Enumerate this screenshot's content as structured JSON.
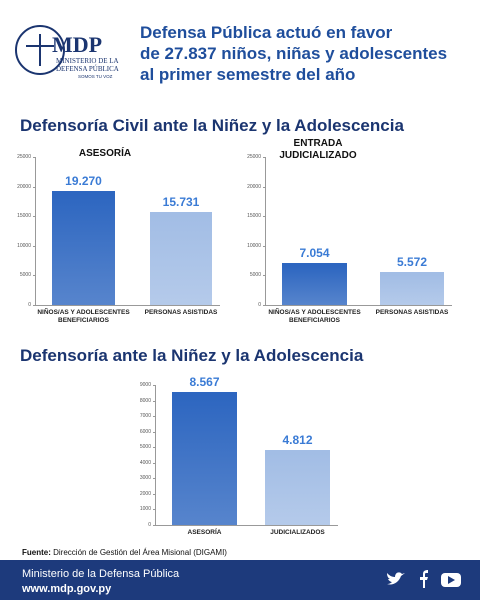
{
  "logo": {
    "name": "MDP",
    "line1": "MINISTERIO DE LA",
    "line2": "DEFENSA PÚBLICA",
    "motto": "SOMOS TU VOZ"
  },
  "header": {
    "title": [
      "Defensa Pública actuó en favor",
      "de 27.837 niños, niñas y adolescentes",
      "al primer semestre del año"
    ]
  },
  "sections": [
    "Defensoría Civil ante la Niñez y la Adolescencia",
    "Defensoría ante la Niñez y la Adolescencia"
  ],
  "chart_data": [
    {
      "type": "bar",
      "title": "ASESORÍA",
      "categories": [
        "NIÑOS/AS Y ADOLESCENTES BENEFICIARIOS",
        "PERSONAS ASISTIDAS"
      ],
      "values": [
        19270,
        15731
      ],
      "value_labels": [
        "19.270",
        "15.731"
      ],
      "colors": [
        "#2d66c0",
        "#a2bde5"
      ],
      "ylim": [
        0,
        25000
      ],
      "yticks": [
        0,
        5000,
        10000,
        15000,
        20000,
        25000
      ]
    },
    {
      "type": "bar",
      "title": "ENTRADA JUDICIALIZADO",
      "categories": [
        "NIÑOS/AS Y ADOLESCENTES BENEFICIARIOS",
        "PERSONAS ASISTIDAS"
      ],
      "values": [
        7054,
        5572
      ],
      "value_labels": [
        "7.054",
        "5.572"
      ],
      "colors": [
        "#2d66c0",
        "#a2bde5"
      ],
      "ylim": [
        0,
        25000
      ],
      "yticks": [
        0,
        5000,
        10000,
        15000,
        20000,
        25000
      ]
    },
    {
      "type": "bar",
      "categories": [
        "ASESORÍA",
        "JUDICIALIZADOS"
      ],
      "values": [
        8567,
        4812
      ],
      "value_labels": [
        "8.567",
        "4.812"
      ],
      "colors": [
        "#2d66c0",
        "#a2bde5"
      ],
      "ylim": [
        0,
        9000
      ],
      "yticks": [
        0,
        1000,
        2000,
        3000,
        4000,
        5000,
        6000,
        7000,
        8000,
        9000
      ]
    }
  ],
  "source": {
    "label": "Fuente:",
    "text": "Dirección de Gestión del Área Misional (DIGAMI)"
  },
  "footer": {
    "org": "Ministerio de la Defensa Pública",
    "url": "www.mdp.gov.py"
  }
}
